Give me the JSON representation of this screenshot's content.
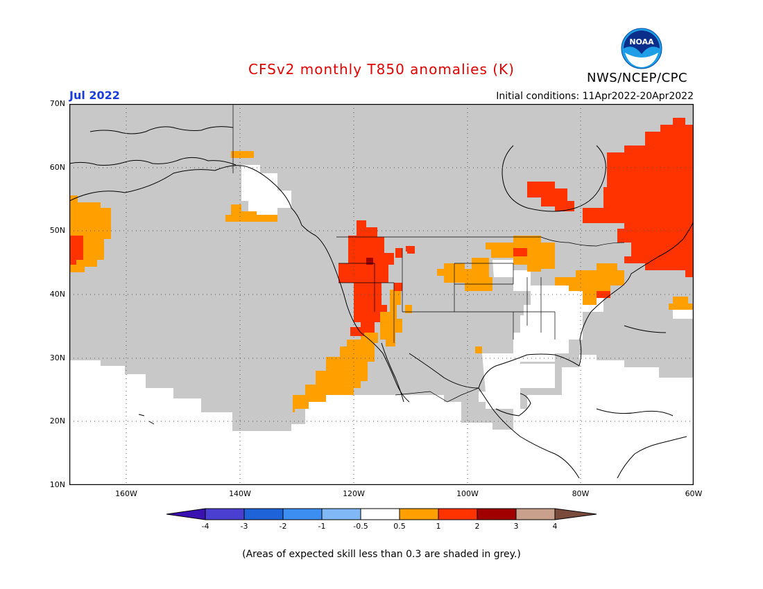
{
  "header": {
    "title": "CFSv2 monthly T850 anomalies (K)",
    "organization": "NWS/NCEP/CPC",
    "logo_text": "NOAA",
    "month": "Jul 2022",
    "initial_conditions": "Initial conditions: 11Apr2022-20Apr2022"
  },
  "map": {
    "lat_labels": [
      "70N",
      "60N",
      "50N",
      "40N",
      "30N",
      "20N",
      "10N"
    ],
    "lon_labels": [
      "160W",
      "140W",
      "120W",
      "100W",
      "80W",
      "60W"
    ],
    "extent": {
      "lon": [
        -170,
        -60
      ],
      "lat": [
        10,
        70
      ]
    },
    "colors": {
      "no_skill": "#c8c8c8",
      "neutral": "#ffffff",
      "pos_0_5_1": "#ffa000",
      "pos_1_2": "#ff3300",
      "pos_2_3": "#a10000",
      "coast": "#000000"
    }
  },
  "colorbar": {
    "tick_labels": [
      "-4",
      "-3",
      "-2",
      "-1",
      "-0.5",
      "0.5",
      "1",
      "2",
      "3",
      "4"
    ],
    "colors": [
      "#3a10b0",
      "#4a3fd0",
      "#1e64d8",
      "#3c8ff0",
      "#7fb8f5",
      "#ffffff",
      "#ffa000",
      "#ff3300",
      "#a10000",
      "#c8a08c",
      "#7a4a3c"
    ]
  },
  "footnote": "(Areas of expected skill less than 0.3 are shaded in grey.)"
}
